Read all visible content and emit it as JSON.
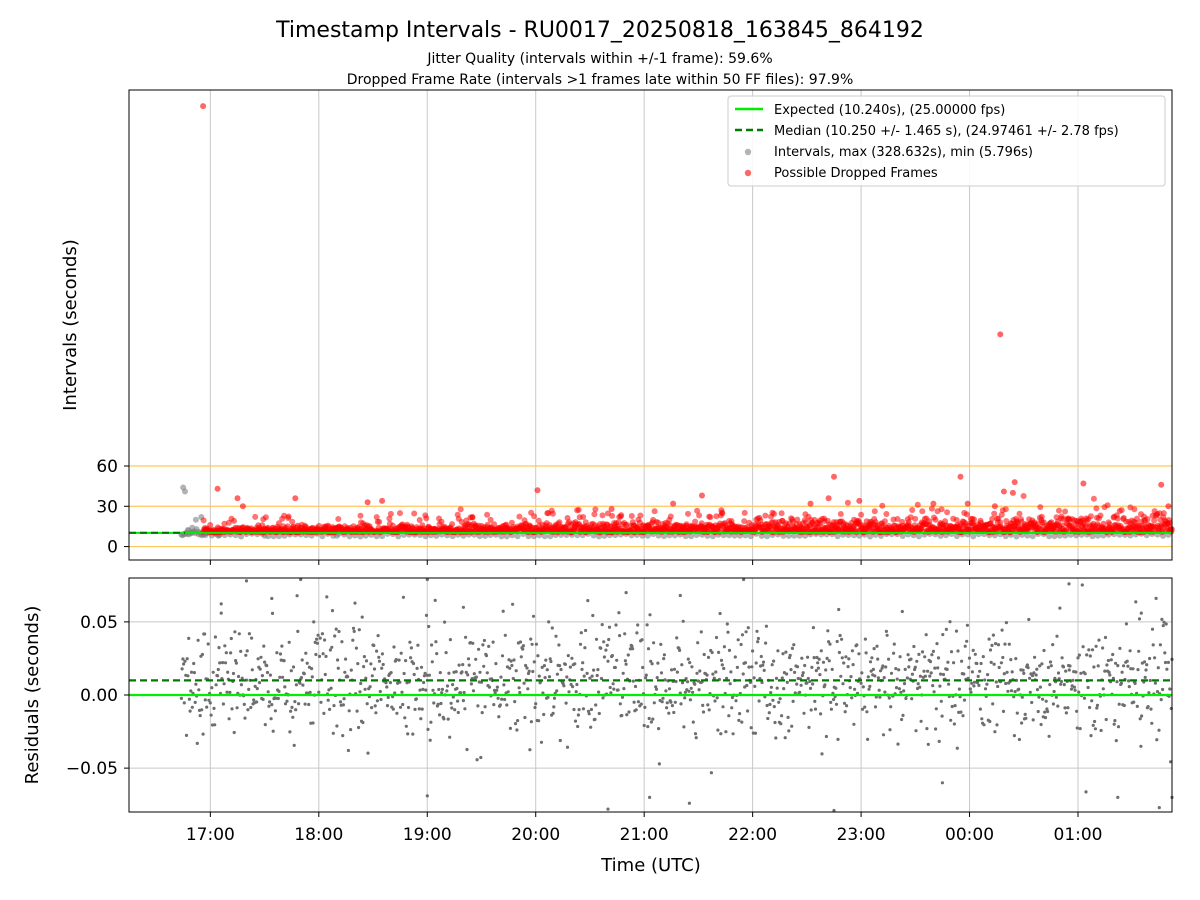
{
  "title": "Timestamp Intervals - RU0017_20250818_163845_864192",
  "subtitle_1": "Jitter Quality (intervals within +/-1 frame): 59.6%",
  "subtitle_2": "Dropped Frame Rate (intervals >1 frames late within 50 FF files): 97.9%",
  "colors": {
    "expected": "#00ee00",
    "median": "#007a00",
    "intervals": "#808080",
    "dropped": "#ff0000",
    "ref_lines": "#ffc65a",
    "grid": "#c8c8c8"
  },
  "chart_data": [
    {
      "type": "scatter",
      "panel": "top",
      "ylabel": "Intervals (seconds)",
      "yticks": [
        "60",
        "30",
        "0"
      ],
      "ylim": [
        -10,
        340
      ],
      "xlim": [
        "16:15",
        "01:52"
      ],
      "grid": true,
      "reference_lines_y": [
        0,
        30,
        60
      ],
      "legend_position": "upper-right",
      "legend": [
        "Expected (10.240s), (25.00000 fps)",
        "Median (10.250 +/- 1.465 s), (24.97461 +/- 2.78 fps)",
        "Intervals, max (328.632s), min (5.796s)",
        "Possible Dropped Frames"
      ],
      "expected_y": 10.24,
      "median_y": 10.25,
      "series": [
        {
          "name": "Intervals, max (328.632s), min (5.796s)",
          "points": [
            [
              "16:45",
              44
            ],
            [
              "16:46",
              41
            ],
            [
              "16:48",
              12
            ],
            [
              "16:50",
              14
            ],
            [
              "16:52",
              20
            ],
            [
              "16:55",
              22
            ],
            [
              "16:58",
              11
            ],
            [
              "17:05",
              9
            ],
            [
              "17:30",
              8
            ],
            [
              "18:10",
              8
            ]
          ]
        },
        {
          "name": "Possible Dropped Frames",
          "points": [
            [
              "16:56",
              328
            ],
            [
              "17:04",
              43
            ],
            [
              "17:15",
              36
            ],
            [
              "17:18",
              30
            ],
            [
              "17:47",
              36
            ],
            [
              "18:27",
              33
            ],
            [
              "18:35",
              34
            ],
            [
              "19:25",
              22
            ],
            [
              "20:01",
              42
            ],
            [
              "20:42",
              28
            ],
            [
              "21:16",
              32
            ],
            [
              "21:32",
              38
            ],
            [
              "22:32",
              32
            ],
            [
              "22:42",
              36
            ],
            [
              "22:45",
              52
            ],
            [
              "22:59",
              34
            ],
            [
              "23:40",
              32
            ],
            [
              "23:55",
              52
            ],
            [
              "23:59",
              32
            ],
            [
              "00:14",
              30
            ],
            [
              "00:17",
              158
            ],
            [
              "00:19",
              41
            ],
            [
              "00:25",
              48
            ],
            [
              "00:24",
              40
            ],
            [
              "01:03",
              47
            ],
            [
              "01:46",
              46
            ],
            [
              "01:50",
              30
            ]
          ]
        }
      ]
    },
    {
      "type": "scatter",
      "panel": "bottom",
      "ylabel": "Residuals (seconds)",
      "yticks": [
        "0.05",
        "0.00",
        "−0.05"
      ],
      "ylim": [
        -0.08,
        0.08
      ],
      "xlabel": "Time (UTC)",
      "xticks": [
        "17:00",
        "18:00",
        "19:00",
        "20:00",
        "21:00",
        "22:00",
        "23:00",
        "00:00",
        "01:00"
      ],
      "expected_y": 0.0,
      "median_y": 0.01,
      "residual_spread": 0.02,
      "series": [
        {
          "name": "",
          "points": [
            [
              "17:06",
              0.056
            ],
            [
              "17:20",
              0.078
            ],
            [
              "17:34",
              0.066
            ],
            [
              "17:50",
              0.079
            ],
            [
              "19:00",
              0.079
            ],
            [
              "19:20",
              0.06
            ],
            [
              "20:50",
              0.07
            ],
            [
              "21:20",
              0.068
            ],
            [
              "21:55",
              0.079
            ],
            [
              "00:55",
              0.076
            ],
            [
              "01:35",
              0.056
            ],
            [
              "19:00",
              -0.069
            ],
            [
              "20:40",
              -0.078
            ],
            [
              "21:03",
              -0.07
            ],
            [
              "21:25",
              -0.074
            ],
            [
              "22:45",
              -0.079
            ],
            [
              "23:45",
              -0.06
            ],
            [
              "01:22",
              -0.07
            ],
            [
              "01:45",
              -0.077
            ],
            [
              "01:52",
              -0.07
            ]
          ]
        }
      ]
    }
  ]
}
